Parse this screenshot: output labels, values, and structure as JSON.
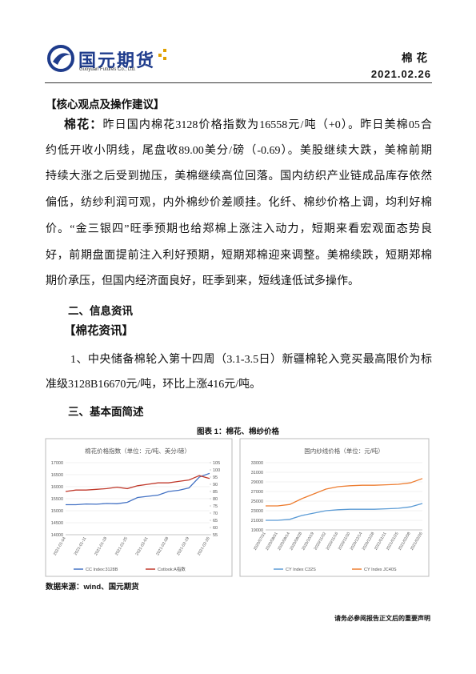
{
  "header": {
    "company": "国元期货",
    "company_en": "Guoyuan Futures Co., Ltd.",
    "category": "棉花",
    "date": "2021.02.26"
  },
  "body": {
    "core_heading": "【核心观点及操作建议】",
    "core_label": "棉花：",
    "core_lines": [
      "昨日国内棉花3128价格指数为16558元/吨（+0）。昨日美棉05合",
      "约低开收小阴线，尾盘收89.00美分/磅（-0.69）。美股继续大跌，美棉前期",
      "持续大涨之后受到抛压，美棉继续高位回落。国内纺织产业链成品库存依然",
      "偏低，纺纱利润可观，内外棉纱价差顺挂。化纤、棉纱价格上调，均利好棉",
      "价。“金三银四”旺季预期也给郑棉上涨注入动力，短期来看宏观面态势良",
      "好，前期盘面提前注入利好预期，短期郑棉迎来调整。美棉续跌，短期郑棉",
      "期价承压，但国内经济面良好，旺季到来，短线逢低试多操作。"
    ],
    "info_heading": "二、信息资讯",
    "news_heading": "【棉花资讯】",
    "news_lines": [
      "1、中央储备棉轮入第十四周（3.1-3.5日）新疆棉轮入竞买最高限价为标",
      "准级3128B16670元/吨，环比上涨416元/吨。"
    ],
    "basics_heading": "三、基本面简述",
    "figure_title": "图表 1：棉花、棉纱价格",
    "source": "数据来源：wind、国元期货"
  },
  "footer": {
    "notice": "请务必参阅报告正文后的重要声明"
  },
  "chart_data": [
    {
      "type": "line",
      "title": "棉花价格指数（单位：元/吨、美分/磅）",
      "categories": [
        "2021-01-04",
        null,
        "2021-01-11",
        null,
        "2021-01-18",
        null,
        "2021-01-25",
        null,
        "2021-02-01",
        null,
        "2021-02-08",
        null,
        "2021-02-19",
        null,
        "2021-02-26"
      ],
      "ylim": [
        14000,
        17000
      ],
      "yticks": [
        14000,
        14500,
        15000,
        15500,
        16000,
        16500,
        17000
      ],
      "y2lim": [
        55,
        105
      ],
      "y2ticks": [
        55,
        60,
        65,
        70,
        75,
        80,
        85,
        90,
        95,
        100,
        105
      ],
      "series": [
        {
          "name": "CC Index:3128B",
          "color": "#4472c4",
          "values": [
            15250,
            15250,
            15280,
            15270,
            15300,
            15290,
            15350,
            15550,
            15600,
            15650,
            15800,
            15850,
            15950,
            16400,
            16558
          ]
        },
        {
          "name": "Cotlook:A指数",
          "color": "#c0392b",
          "axis": "y2",
          "values": [
            85,
            86,
            86,
            86.5,
            87,
            88,
            87,
            89,
            90,
            91,
            91,
            92,
            93,
            96,
            94
          ]
        }
      ]
    },
    {
      "type": "line",
      "title": "国内纱线价格（单位：元/吨）",
      "categories": [
        "2020/07/31",
        "2020/08/31",
        "2020/09/14",
        "2020/09/28",
        "2020/10/19",
        "2020/11/02",
        "2020/11/16",
        "2020/11/30",
        "2020/12/14",
        "2020/12/28",
        "2021/01/11",
        "2021/01/25",
        "2021/02/08",
        "2021/02/26"
      ],
      "ylim": [
        19000,
        33000
      ],
      "yticks": [
        19000,
        21000,
        23000,
        25000,
        27000,
        29000,
        31000,
        33000
      ],
      "series": [
        {
          "name": "CY Index C32S",
          "color": "#5b9bd5",
          "values": [
            21000,
            21000,
            21200,
            22000,
            22500,
            23000,
            23200,
            23300,
            23300,
            23300,
            23400,
            23500,
            23800,
            24500
          ]
        },
        {
          "name": "CY Index JC40S",
          "color": "#ed7d31",
          "values": [
            24000,
            24000,
            24300,
            25500,
            26500,
            27500,
            28000,
            28200,
            28300,
            28300,
            28400,
            28500,
            28800,
            29700
          ]
        }
      ]
    }
  ]
}
